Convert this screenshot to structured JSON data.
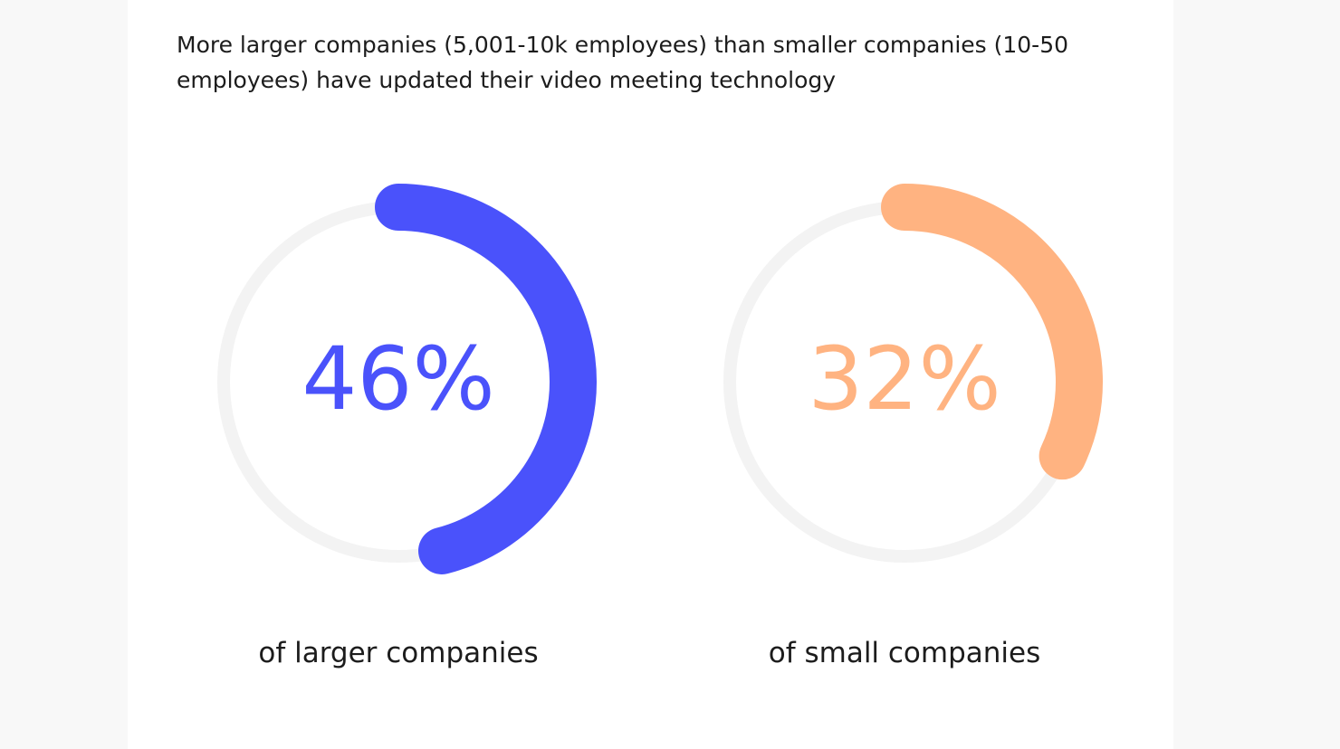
{
  "headline": "More larger companies (5,001-10k employees) than smaller companies (10-50 employees) have updated their video meeting technology",
  "chart_data": [
    {
      "type": "pie",
      "name": "larger-companies",
      "value": 46,
      "label": "46%",
      "caption": "of larger companies",
      "color": "#4a52fb",
      "track_color": "#f3f3f3"
    },
    {
      "type": "pie",
      "name": "small-companies",
      "value": 32,
      "label": "32%",
      "caption": "of small companies",
      "color": "#ffb381",
      "track_color": "#f3f3f3"
    }
  ]
}
